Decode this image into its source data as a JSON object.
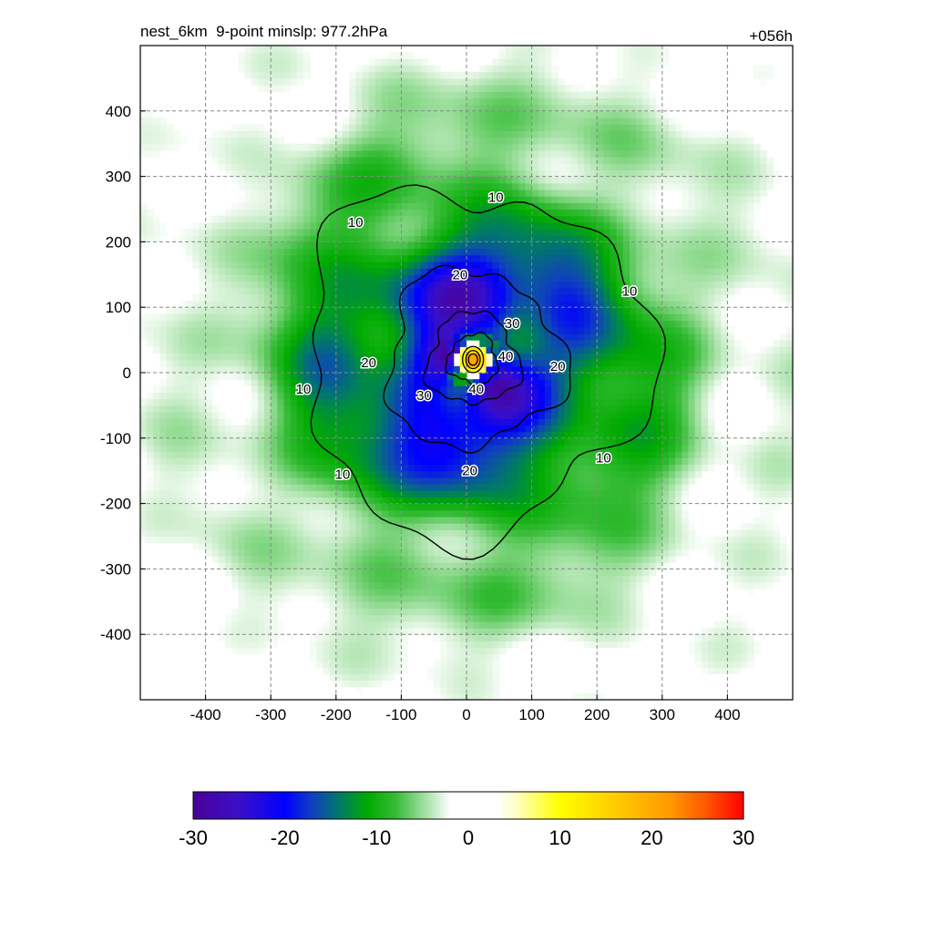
{
  "chart_data": {
    "type": "heatmap",
    "title": "nest_6km  9-point minslp: 977.2hPa",
    "time_label": "+056h",
    "xlim": [
      -500,
      500
    ],
    "ylim": [
      -500,
      500
    ],
    "x_ticks": [
      -400,
      -300,
      -200,
      -100,
      0,
      100,
      200,
      300,
      400
    ],
    "y_ticks": [
      -400,
      -300,
      -200,
      -100,
      0,
      100,
      200,
      300,
      400
    ],
    "grid": true,
    "grid_style": "dashed",
    "center": [
      10,
      20
    ],
    "colorbar": {
      "min": -30,
      "max": 30,
      "ticks": [
        -30,
        -20,
        -10,
        0,
        10,
        20,
        30
      ],
      "stops": [
        {
          "value": -30,
          "color": "#4a0099"
        },
        {
          "value": -25,
          "color": "#3a10c8"
        },
        {
          "value": -20,
          "color": "#0000ff"
        },
        {
          "value": -17,
          "color": "#1040c0"
        },
        {
          "value": -14,
          "color": "#007a66"
        },
        {
          "value": -11,
          "color": "#00aa00"
        },
        {
          "value": -8,
          "color": "#33bb33"
        },
        {
          "value": -5,
          "color": "#99dd99"
        },
        {
          "value": -3,
          "color": "#dcf3dc"
        },
        {
          "value": -2,
          "color": "#ffffff"
        },
        {
          "value": 3,
          "color": "#ffffff"
        },
        {
          "value": 5,
          "color": "#ffffcc"
        },
        {
          "value": 10,
          "color": "#ffff00"
        },
        {
          "value": 16,
          "color": "#ffcc00"
        },
        {
          "value": 22,
          "color": "#ff9900"
        },
        {
          "value": 26,
          "color": "#ff5500"
        },
        {
          "value": 30,
          "color": "#ff0000"
        }
      ]
    },
    "contours": [
      {
        "level": 10,
        "label": "10",
        "radius": 265
      },
      {
        "level": 20,
        "label": "20",
        "radius": 135
      },
      {
        "level": 30,
        "label": "30",
        "radius": 70
      },
      {
        "level": 40,
        "label": "40",
        "radius": 38
      }
    ],
    "contour_labels": [
      {
        "text": "10",
        "x": 45,
        "y": 268
      },
      {
        "text": "10",
        "x": -170,
        "y": 230
      },
      {
        "text": "10",
        "x": 250,
        "y": 125
      },
      {
        "text": "10",
        "x": -250,
        "y": -25
      },
      {
        "text": "10",
        "x": -190,
        "y": -155
      },
      {
        "text": "10",
        "x": 210,
        "y": -130
      },
      {
        "text": "20",
        "x": -150,
        "y": 15
      },
      {
        "text": "20",
        "x": 140,
        "y": 10
      },
      {
        "text": "20",
        "x": 5,
        "y": -150
      },
      {
        "text": "20",
        "x": -10,
        "y": 150
      },
      {
        "text": "30",
        "x": 70,
        "y": 75
      },
      {
        "text": "30",
        "x": -65,
        "y": -35
      },
      {
        "text": "40",
        "x": 60,
        "y": 25
      },
      {
        "text": "40",
        "x": 15,
        "y": -25
      }
    ]
  }
}
